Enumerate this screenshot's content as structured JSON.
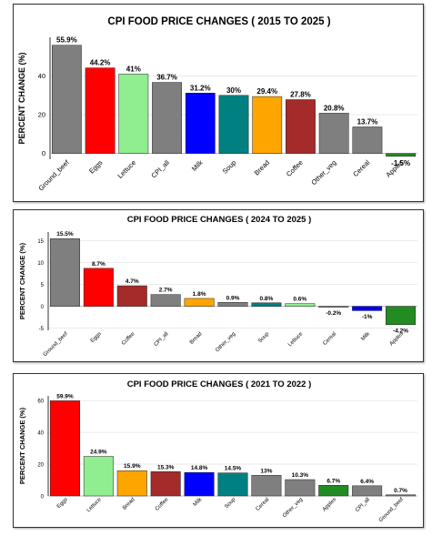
{
  "colors": {
    "gray": "#7f7f7f",
    "red": "#ff0000",
    "lightgreen": "#90ee90",
    "blue": "#0000ff",
    "teal": "#008080",
    "orange": "#ffa500",
    "brown": "#a52a2a",
    "green": "#228b22"
  },
  "chart_data": [
    {
      "type": "bar",
      "title": "CPI FOOD PRICE CHANGES ( 2015 TO 2025 )",
      "xlabel": "",
      "ylabel": "PERCENT CHANGE (%)",
      "ylim": [
        -3,
        60
      ],
      "yticks": [
        0,
        20,
        40
      ],
      "grid": true,
      "categories": [
        "Ground_beef",
        "Eggs",
        "Lettuce",
        "CPI_all",
        "Milk",
        "Soup",
        "Bread",
        "Coffee",
        "Other_veg",
        "Cereal",
        "Apples"
      ],
      "values": [
        55.9,
        44.2,
        41,
        36.7,
        31.2,
        30,
        29.4,
        27.8,
        20.8,
        13.7,
        -1.5
      ],
      "labels": [
        "55.9%",
        "44.2%",
        "41%",
        "36.7%",
        "31.2%",
        "30%",
        "29.4%",
        "27.8%",
        "20.8%",
        "13.7%",
        "-1.5%"
      ],
      "bar_colors": [
        "gray",
        "red",
        "lightgreen",
        "gray",
        "blue",
        "teal",
        "orange",
        "brown",
        "gray",
        "gray",
        "green"
      ]
    },
    {
      "type": "bar",
      "title": "CPI FOOD PRICE CHANGES ( 2024 TO 2025 )",
      "xlabel": "",
      "ylabel": "PERCENT CHANGE (%)",
      "ylim": [
        -5.5,
        17
      ],
      "yticks": [
        -5,
        0,
        5,
        10,
        15
      ],
      "grid": true,
      "categories": [
        "Ground_beef",
        "Eggs",
        "Coffee",
        "CPI_all",
        "Bread",
        "Other_veg",
        "Soup",
        "Lettuce",
        "Cereal",
        "Milk",
        "Apples"
      ],
      "values": [
        15.5,
        8.7,
        4.7,
        2.7,
        1.8,
        0.9,
        0.8,
        0.6,
        -0.2,
        -1,
        -4.2
      ],
      "labels": [
        "15.5%",
        "8.7%",
        "4.7%",
        "2.7%",
        "1.8%",
        "0.9%",
        "0.8%",
        "0.6%",
        "-0.2%",
        "-1%",
        "-4.2%"
      ],
      "bar_colors": [
        "gray",
        "red",
        "brown",
        "gray",
        "orange",
        "gray",
        "teal",
        "lightgreen",
        "gray",
        "blue",
        "green"
      ]
    },
    {
      "type": "bar",
      "title": "CPI FOOD PRICE CHANGES ( 2021 TO 2022 )",
      "xlabel": "",
      "ylabel": "PERCENT CHANGE (%)",
      "ylim": [
        0,
        63
      ],
      "yticks": [
        0,
        20,
        40,
        60
      ],
      "grid": true,
      "categories": [
        "Eggs",
        "Lettuce",
        "Bread",
        "Coffee",
        "Milk",
        "Soup",
        "Cereal",
        "Other_veg",
        "Apples",
        "CPI_all",
        "Ground_beef"
      ],
      "values": [
        59.9,
        24.9,
        15.9,
        15.3,
        14.8,
        14.5,
        13,
        10.3,
        6.7,
        6.4,
        0.7
      ],
      "labels": [
        "59.9%",
        "24.9%",
        "15.9%",
        "15.3%",
        "14.8%",
        "14.5%",
        "13%",
        "10.3%",
        "6.7%",
        "6.4%",
        "0.7%"
      ],
      "bar_colors": [
        "red",
        "lightgreen",
        "orange",
        "brown",
        "blue",
        "teal",
        "gray",
        "gray",
        "green",
        "gray",
        "gray"
      ]
    }
  ]
}
